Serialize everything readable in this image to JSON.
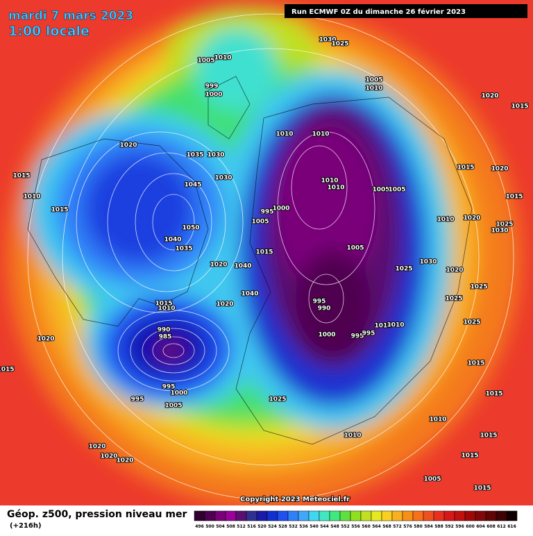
{
  "header": {
    "date": "mardi 7 mars 2023",
    "time": "1:00 locale",
    "run": "Run ECMWF 0Z du dimanche 26 février 2023"
  },
  "copyright": "Copyright 2023 Meteociel.fr",
  "footer": {
    "title": "Géop. z500, pression niveau mer",
    "lead": "(+216h)"
  },
  "isobar_labels": [
    1030,
    1025,
    1005,
    1010,
    1005,
    1010,
    1020,
    1015,
    999,
    1000,
    1010,
    1010,
    1020,
    1035,
    1030,
    1015,
    1015,
    1020,
    1045,
    1030,
    1010,
    1010,
    1005,
    1005,
    1010,
    1015,
    995,
    1000,
    1015,
    1005,
    1010,
    1020,
    1025,
    1030,
    1050,
    1040,
    1035,
    1005,
    1015,
    1025,
    1030,
    1020,
    1040,
    1020,
    1025,
    1040,
    1025,
    1015,
    1010,
    1020,
    995,
    990,
    1025,
    1010,
    1010,
    990,
    985,
    1000,
    995,
    995,
    1020,
    1015,
    1015,
    995,
    1000,
    995,
    1005,
    1025,
    1015,
    1010,
    1010,
    1015,
    1020,
    1020,
    1020,
    1015,
    1005,
    1015
  ],
  "legend": {
    "values": [
      496,
      500,
      504,
      508,
      512,
      516,
      520,
      524,
      528,
      532,
      536,
      540,
      544,
      548,
      552,
      556,
      560,
      564,
      568,
      572,
      576,
      580,
      584,
      588,
      592,
      596,
      600,
      604,
      608,
      612,
      616
    ],
    "colors": [
      "#300030",
      "#500050",
      "#7a007a",
      "#9a009a",
      "#5a1070",
      "#303090",
      "#1a1aa8",
      "#1030d0",
      "#2050f0",
      "#3080f8",
      "#40a8f8",
      "#40d8f0",
      "#40e8c0",
      "#40e880",
      "#60e040",
      "#90e020",
      "#c0e020",
      "#e8e820",
      "#f8d020",
      "#f8b020",
      "#f89018",
      "#f87018",
      "#f05020",
      "#e83020",
      "#d81818",
      "#c01010",
      "#a00808",
      "#800808",
      "#600404",
      "#400202",
      "#100000"
    ]
  }
}
